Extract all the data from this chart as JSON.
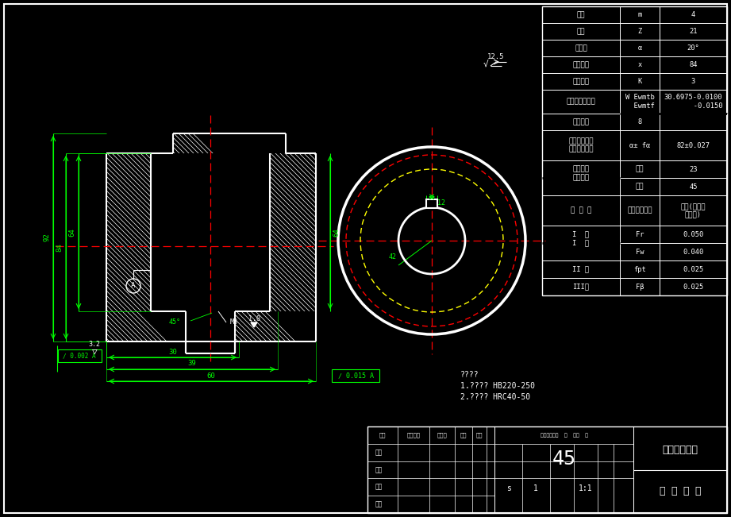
{
  "bg": "#000000",
  "W": "#ffffff",
  "G": "#00ff00",
  "R": "#ff0000",
  "Y": "#ffff00",
  "table_rows": [
    [
      "模数",
      "m",
      "4"
    ],
    [
      "齿数",
      "Z",
      "21"
    ],
    [
      "齿形角",
      "α",
      "20°"
    ],
    [
      "变位系数",
      "x",
      "84"
    ],
    [
      "跳测齿数",
      "K",
      "3"
    ],
    [
      "公法线平均长度",
      "W Ewmtb\n  Ewmtf",
      "30.6975-0.0100\n       -0.0150"
    ],
    [
      "精度等级",
      "8",
      ""
    ],
    [
      "齿轮圆中心距\n及其极限偏差",
      "α± fα",
      "82±0.027"
    ],
    [
      "配对齿轮",
      "件号",
      "23"
    ],
    [
      "",
      "齿数",
      "45"
    ],
    [
      "公 差 组",
      "检验项目代号",
      "公差(或极限\n偏差値)"
    ],
    [
      "I  组",
      "Fr",
      "0.050"
    ],
    [
      "",
      "Fw",
      "0.040"
    ],
    [
      "II 组",
      "fpt",
      "0.025"
    ],
    [
      "III组",
      "Fβ",
      "0.025"
    ]
  ],
  "notes": [
    "????",
    "1.???? HB220-250",
    "2.???? HRC40-50"
  ],
  "tb_number": "45",
  "tb_school": "扬州职业大学",
  "tb_part": "电 机 齿 轮",
  "tb_scale": "1:1",
  "tb_material": "s",
  "surface_finish": "12.5"
}
